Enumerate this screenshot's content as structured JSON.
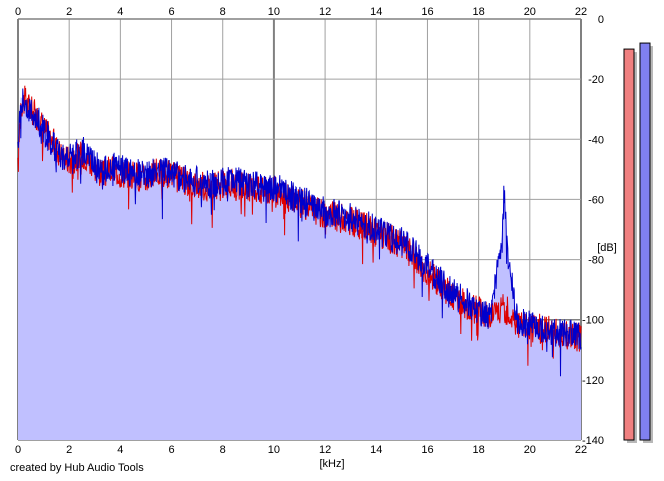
{
  "footer": {
    "credit": "created by Hub Audio Tools"
  },
  "colors": {
    "background": "#ffffff",
    "fill": "#c0c0ff",
    "channel_left": "#dd0000",
    "channel_right": "#0000cc",
    "grid": "#a0a0a0",
    "meter_left_fill": "#f08080",
    "meter_right_fill": "#8080f0",
    "meter_shadow": "#b8b8b8"
  },
  "chart_data": {
    "type": "area",
    "xlabel": "[kHz]",
    "ylabel": "[dB]",
    "xlim": [
      0,
      22
    ],
    "ylim": [
      -140,
      0
    ],
    "x_ticks": [
      "0",
      "2",
      "4",
      "6",
      "8",
      "10",
      "12",
      "14",
      "16",
      "18",
      "20",
      "22"
    ],
    "y_ticks": [
      "0",
      "-20",
      "-40",
      "-60",
      "-80",
      "-100",
      "-120",
      "-140"
    ],
    "x_axis_positions": [
      "top",
      "bottom"
    ],
    "y_axis_position": "right",
    "grid": true,
    "series": [
      {
        "channel": "left",
        "color": "#dd0000",
        "x": [
          0,
          0.1,
          0.3,
          0.5,
          0.8,
          1.0,
          1.3,
          1.6,
          2.0,
          2.3,
          2.6,
          3.0,
          3.3,
          3.6,
          4.0,
          4.5,
          5.0,
          5.5,
          6.0,
          6.5,
          7.0,
          7.5,
          8.0,
          8.5,
          9.0,
          9.5,
          10.0,
          10.5,
          11.0,
          11.5,
          12.0,
          12.5,
          13.0,
          13.5,
          14.0,
          14.5,
          15.0,
          15.5,
          16.0,
          16.5,
          17.0,
          17.5,
          18.0,
          18.5,
          18.9,
          19.0,
          19.1,
          19.5,
          20.0,
          20.5,
          21.0,
          21.5,
          22.0
        ],
        "y": [
          -50,
          -28,
          -27,
          -30,
          -33,
          -36,
          -40,
          -44,
          -47,
          -46,
          -45,
          -49,
          -52,
          -50,
          -51,
          -52,
          -53,
          -51,
          -52,
          -54,
          -55,
          -56,
          -55,
          -55,
          -56,
          -57,
          -57,
          -59,
          -61,
          -63,
          -65,
          -66,
          -67,
          -69,
          -71,
          -73,
          -75,
          -79,
          -84,
          -88,
          -92,
          -95,
          -97,
          -98,
          -97,
          -96,
          -97,
          -101,
          -103,
          -103,
          -104,
          -105,
          -106
        ]
      },
      {
        "channel": "right",
        "color": "#0000cc",
        "x": [
          0,
          0.1,
          0.3,
          0.5,
          0.8,
          1.0,
          1.3,
          1.6,
          2.0,
          2.3,
          2.6,
          3.0,
          3.3,
          3.6,
          4.0,
          4.5,
          5.0,
          5.5,
          6.0,
          6.5,
          7.0,
          7.5,
          8.0,
          8.5,
          9.0,
          9.5,
          10.0,
          10.5,
          11.0,
          11.5,
          12.0,
          12.5,
          13.0,
          13.5,
          14.0,
          14.5,
          15.0,
          15.5,
          16.0,
          16.5,
          17.0,
          17.5,
          18.0,
          18.5,
          18.9,
          19.0,
          19.1,
          19.5,
          20.0,
          20.5,
          21.0,
          21.5,
          22.0
        ],
        "y": [
          -45,
          -26,
          -28,
          -31,
          -34,
          -37,
          -41,
          -45,
          -46,
          -45,
          -44,
          -48,
          -51,
          -49,
          -50,
          -51,
          -52,
          -50,
          -51,
          -53,
          -54,
          -55,
          -54,
          -54,
          -55,
          -56,
          -56,
          -58,
          -60,
          -62,
          -64,
          -65,
          -66,
          -68,
          -70,
          -72,
          -74,
          -78,
          -83,
          -87,
          -91,
          -94,
          -97,
          -99,
          -72,
          -58,
          -75,
          -100,
          -102,
          -103,
          -104,
          -105,
          -105
        ]
      }
    ],
    "level_meters": [
      {
        "channel": "left",
        "value_db": -10
      },
      {
        "channel": "right",
        "value_db": -8
      }
    ]
  }
}
